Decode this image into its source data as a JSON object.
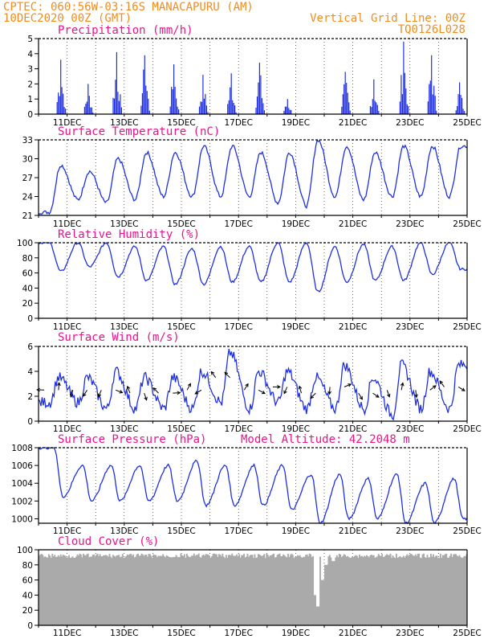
{
  "header": {
    "line1_left": "CPTEC:   060:56W-03:16S   MANACAPURU (AM)",
    "line2_left": "10DEC2020 00Z (GMT)",
    "line2_right": "Vertical Grid Line: 00Z",
    "line3_right": "TQ0126L028"
  },
  "colors": {
    "header": "#f08c1e",
    "title": "#e8148c",
    "series": "#2030e0",
    "cloud": "#aaaaaa",
    "axis": "#000000"
  },
  "chart_data": [
    {
      "type": "bar",
      "title": "Precipitation (mm/h)",
      "ylim": [
        0,
        5
      ],
      "yticks": [
        "0",
        "1",
        "2",
        "3",
        "4",
        "5"
      ],
      "xticks": [
        "11DEC",
        "13DEC",
        "15DEC",
        "17DEC",
        "19DEC",
        "21DEC",
        "23DEC",
        "25DEC"
      ],
      "x_start": "10DEC2020 00Z",
      "x_end": "25DEC2020 00Z",
      "bursts": [
        {
          "day": 0.76,
          "max": 3.6
        },
        {
          "day": 1.72,
          "max": 2.0
        },
        {
          "day": 2.72,
          "max": 4.1
        },
        {
          "day": 3.7,
          "max": 3.9
        },
        {
          "day": 4.72,
          "max": 3.3
        },
        {
          "day": 5.74,
          "max": 2.6
        },
        {
          "day": 6.73,
          "max": 2.7
        },
        {
          "day": 7.72,
          "max": 3.4
        },
        {
          "day": 8.7,
          "max": 1.0
        },
        {
          "day": 10.72,
          "max": 2.8
        },
        {
          "day": 11.72,
          "max": 2.3
        },
        {
          "day": 12.76,
          "max": 4.8
        },
        {
          "day": 13.74,
          "max": 3.9
        },
        {
          "day": 14.72,
          "max": 2.1
        }
      ]
    },
    {
      "type": "line",
      "title": "Surface Temperature (nC)",
      "ylim": [
        21,
        33
      ],
      "yticks": [
        "21",
        "24",
        "27",
        "30",
        "33"
      ],
      "xticks": [
        "11DEC",
        "13DEC",
        "15DEC",
        "17DEC",
        "19DEC",
        "21DEC",
        "23DEC",
        "25DEC"
      ],
      "daily_max": [
        29,
        28,
        30,
        31,
        31,
        32,
        32,
        31,
        31,
        33,
        32,
        31,
        32,
        32,
        32
      ],
      "daily_min": [
        21.5,
        23.5,
        23,
        23.5,
        24,
        24,
        24,
        24,
        23,
        22.5,
        24,
        23.5,
        24,
        24,
        24
      ]
    },
    {
      "type": "line",
      "title": "Relative Humidity (%)",
      "ylim": [
        0,
        100
      ],
      "yticks": [
        "0",
        "20",
        "40",
        "60",
        "80",
        "100"
      ],
      "xticks": [
        "11DEC",
        "13DEC",
        "15DEC",
        "17DEC",
        "19DEC",
        "21DEC",
        "23DEC",
        "25DEC"
      ],
      "daily_max": [
        100,
        100,
        100,
        95,
        95,
        92,
        95,
        95,
        100,
        100,
        95,
        98,
        95,
        100,
        100
      ],
      "daily_min": [
        62,
        68,
        55,
        50,
        45,
        45,
        48,
        48,
        48,
        35,
        48,
        50,
        50,
        58,
        65
      ]
    },
    {
      "type": "line",
      "title": "Surface Wind (m/s)",
      "ylim": [
        0,
        6
      ],
      "yticks": [
        "0",
        "2",
        "4",
        "6"
      ],
      "xticks": [
        "11DEC",
        "13DEC",
        "15DEC",
        "17DEC",
        "19DEC",
        "21DEC",
        "23DEC",
        "25DEC"
      ],
      "daily_max": [
        3.5,
        3.5,
        4.0,
        3.5,
        3.5,
        4.0,
        5.5,
        4.0,
        4.0,
        3.5,
        4.5,
        3.5,
        4.5,
        4.0,
        4.5
      ],
      "daily_min": [
        1.5,
        1.5,
        1.0,
        1.0,
        1.0,
        1.0,
        1.5,
        1.0,
        1.5,
        1.0,
        1.0,
        1.0,
        0.5,
        1.0,
        1.0
      ]
    },
    {
      "type": "line",
      "title": "Surface Pressure (hPa)",
      "subtitle": "Model Altitude: 42.2048 m",
      "ylim": [
        999.5,
        1008
      ],
      "yticks": [
        "1000",
        "1002",
        "1004",
        "1006",
        "1008"
      ],
      "xticks": [
        "11DEC",
        "13DEC",
        "15DEC",
        "17DEC",
        "19DEC",
        "21DEC",
        "23DEC",
        "25DEC"
      ],
      "daily_max": [
        1008,
        1006,
        1006,
        1006,
        1006,
        1006.5,
        1006,
        1006,
        1006,
        1005,
        1005,
        1004.5,
        1005,
        1004,
        1004.5
      ],
      "daily_min": [
        1002.5,
        1002,
        1002,
        1002,
        1002,
        1001.5,
        1001.5,
        1001.5,
        1001,
        999.5,
        1000,
        1000,
        999.5,
        999.5,
        1000
      ]
    },
    {
      "type": "bar",
      "title": "Cloud Cover (%)",
      "ylim": [
        0,
        100
      ],
      "yticks": [
        "0",
        "20",
        "40",
        "60",
        "80",
        "100"
      ],
      "xticks": [
        "11DEC",
        "13DEC",
        "15DEC",
        "17DEC",
        "19DEC",
        "21DEC",
        "23DEC",
        "25DEC"
      ],
      "typical": 95,
      "dips": [
        {
          "day": 9.65,
          "value": 40
        },
        {
          "day": 9.75,
          "value": 25
        },
        {
          "day": 9.9,
          "value": 60
        },
        {
          "day": 10.05,
          "value": 80
        },
        {
          "day": 10.3,
          "value": 85
        }
      ]
    }
  ]
}
